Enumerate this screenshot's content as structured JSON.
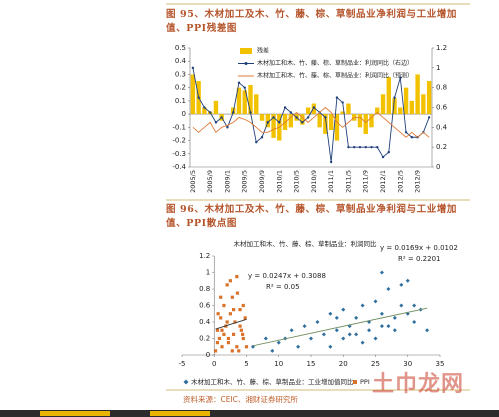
{
  "chart_data": [
    {
      "type": "bar",
      "title": "图 95、木材加工及木、竹、藤、棕、草制品业净利润与工业增加值、PPI残差图",
      "categories": [
        "2005/5",
        null,
        null,
        "2005/9",
        null,
        null,
        "2009/1",
        null,
        null,
        "2009/5",
        null,
        null,
        "2009/9",
        null,
        null,
        "2010/1",
        null,
        null,
        "2010/5",
        null,
        null,
        "2010/9",
        null,
        null,
        "2011/1",
        null,
        null,
        "2011/5",
        null,
        null,
        "2011/9",
        null,
        null,
        "2012/1",
        null,
        null,
        "2012/5",
        null,
        null,
        "2012/9",
        null,
        null
      ],
      "series": [
        {
          "name": "残差",
          "type": "bar",
          "color": "#f2c200",
          "values": [
            0.3,
            0.25,
            0.05,
            0.02,
            0.1,
            -0.05,
            0.0,
            0.05,
            0.2,
            0.18,
            0.22,
            0.15,
            -0.05,
            -0.1,
            -0.18,
            -0.2,
            -0.12,
            -0.1,
            -0.05,
            -0.08,
            0.05,
            0.08,
            -0.1,
            -0.15,
            -0.12,
            -0.2,
            0.02,
            0.08,
            -0.05,
            -0.1,
            -0.15,
            -0.1,
            0.05,
            0.15,
            0.28,
            0.12,
            0.05,
            0.2,
            0.1,
            0.3,
            0.15,
            0.25
          ]
        },
        {
          "name": "木材加工和木、竹、藤、棕、草制品业：利润同比（右边）",
          "type": "line",
          "axis": "y2",
          "color": "#1f3f7a",
          "markers": true,
          "values": [
            1.0,
            0.7,
            0.6,
            0.55,
            0.45,
            0.5,
            0.4,
            0.55,
            0.85,
            0.8,
            0.55,
            0.25,
            0.3,
            0.45,
            0.5,
            0.45,
            0.6,
            0.55,
            0.5,
            0.45,
            0.5,
            0.6,
            0.55,
            0.5,
            0.05,
            0.7,
            0.65,
            0.2,
            0.2,
            0.2,
            0.2,
            0.2,
            0.2,
            0.1,
            0.15,
            0.7,
            0.9,
            0.35,
            0.3,
            0.3,
            0.35,
            0.5
          ]
        },
        {
          "name": "木材加工和木、竹、藤、棕、草制品业：利润同比（预测）",
          "type": "line",
          "axis": "y2",
          "color": "#e07b39",
          "markers": false,
          "values": [
            0.4,
            0.35,
            0.4,
            0.45,
            0.35,
            0.4,
            0.42,
            0.45,
            0.5,
            0.48,
            0.45,
            0.4,
            0.35,
            0.35,
            0.38,
            0.4,
            0.45,
            0.5,
            0.55,
            0.5,
            0.45,
            0.5,
            0.55,
            0.6,
            0.55,
            0.45,
            0.4,
            0.45,
            0.5,
            0.5,
            0.45,
            0.5,
            0.55,
            0.5,
            0.45,
            0.4,
            0.35,
            0.3,
            0.35,
            0.3,
            0.35,
            0.3
          ]
        }
      ],
      "ylim": [
        -0.4,
        0.5
      ],
      "yticks": [
        -0.4,
        -0.3,
        -0.2,
        -0.1,
        0,
        0.1,
        0.2,
        0.3,
        0.4,
        0.5
      ],
      "y2lim": [
        0,
        1.2
      ],
      "y2ticks": [
        0,
        0.2,
        0.4,
        0.6,
        0.8,
        1,
        1.2
      ]
    },
    {
      "type": "scatter",
      "title": "图 96、木材加工及木、竹、藤、棕、草制品业净利润与工业增加值、PPI散点图",
      "ylabel": "木材加工和木、竹、藤、棕、草制品业：利润同比",
      "series": [
        {
          "name": "木材加工和木、竹、藤、棕、草制品业：工业增加值同比",
          "color": "#2f6f9f",
          "marker": "diamond",
          "x": [
            6,
            8,
            10,
            12,
            13,
            14,
            15,
            16,
            17,
            18,
            18,
            19,
            20,
            20,
            21,
            22,
            22,
            23,
            24,
            24,
            25,
            25,
            26,
            26,
            27,
            28,
            28,
            29,
            30,
            30,
            31,
            32,
            33,
            9,
            11,
            19,
            23,
            27,
            29,
            21,
            26,
            31
          ],
          "values": [
            0.1,
            0.2,
            0.15,
            0.3,
            0.1,
            0.35,
            0.2,
            0.4,
            0.25,
            0.5,
            0.1,
            0.3,
            0.55,
            0.2,
            0.35,
            0.45,
            0.25,
            0.6,
            0.4,
            0.3,
            0.65,
            0.2,
            0.5,
            0.35,
            0.8,
            0.45,
            0.3,
            0.6,
            0.9,
            0.5,
            0.4,
            0.55,
            0.3,
            0.05,
            0.2,
            0.45,
            0.15,
            0.35,
            0.85,
            0.25,
            1.0,
            0.6
          ],
          "trendline": {
            "slope": 0.0169,
            "intercept": 0.0102,
            "color": "#6f8f5f",
            "equation": "y = 0.0169x + 0.0102",
            "r2": "R² = 0.2201"
          }
        },
        {
          "name": "PPI",
          "color": "#d9732b",
          "marker": "square",
          "x": [
            0.2,
            0.5,
            0.8,
            1.0,
            1.2,
            1.5,
            1.8,
            2.0,
            2.2,
            2.5,
            2.8,
            3.0,
            3.2,
            3.5,
            3.8,
            4.0,
            4.2,
            4.5,
            4.8,
            5.0,
            0.5,
            1.0,
            1.5,
            2.0,
            2.5,
            3.0,
            3.5,
            4.0,
            4.5,
            1.2,
            2.8,
            3.6,
            4.4,
            0.6,
            2.2
          ],
          "values": [
            0.05,
            0.3,
            0.2,
            0.45,
            0.1,
            0.6,
            0.35,
            0.85,
            0.15,
            0.5,
            0.7,
            0.25,
            0.4,
            0.95,
            0.05,
            0.55,
            0.3,
            0.2,
            0.45,
            0.1,
            0.15,
            0.7,
            0.25,
            0.4,
            0.9,
            0.55,
            0.1,
            0.35,
            0.6,
            0.3,
            0.05,
            0.75,
            0.25,
            0.5,
            0.2
          ],
          "trendline": {
            "slope": 0.0247,
            "intercept": 0.3088,
            "color": "#333333",
            "equation": "y = 0.0247x + 0.3088",
            "r2": "R² = 0.05"
          }
        }
      ],
      "xlim": [
        -5,
        35
      ],
      "xticks": [
        -5,
        0,
        5,
        10,
        15,
        20,
        25,
        30,
        35
      ],
      "ylim": [
        0,
        1.2
      ],
      "yticks": [
        0,
        0.2,
        0.4,
        0.6,
        0.8,
        1,
        1.2
      ]
    }
  ],
  "source": "资料来源：CEIC、湘财证券研究所",
  "watermark": "土巾龙网"
}
